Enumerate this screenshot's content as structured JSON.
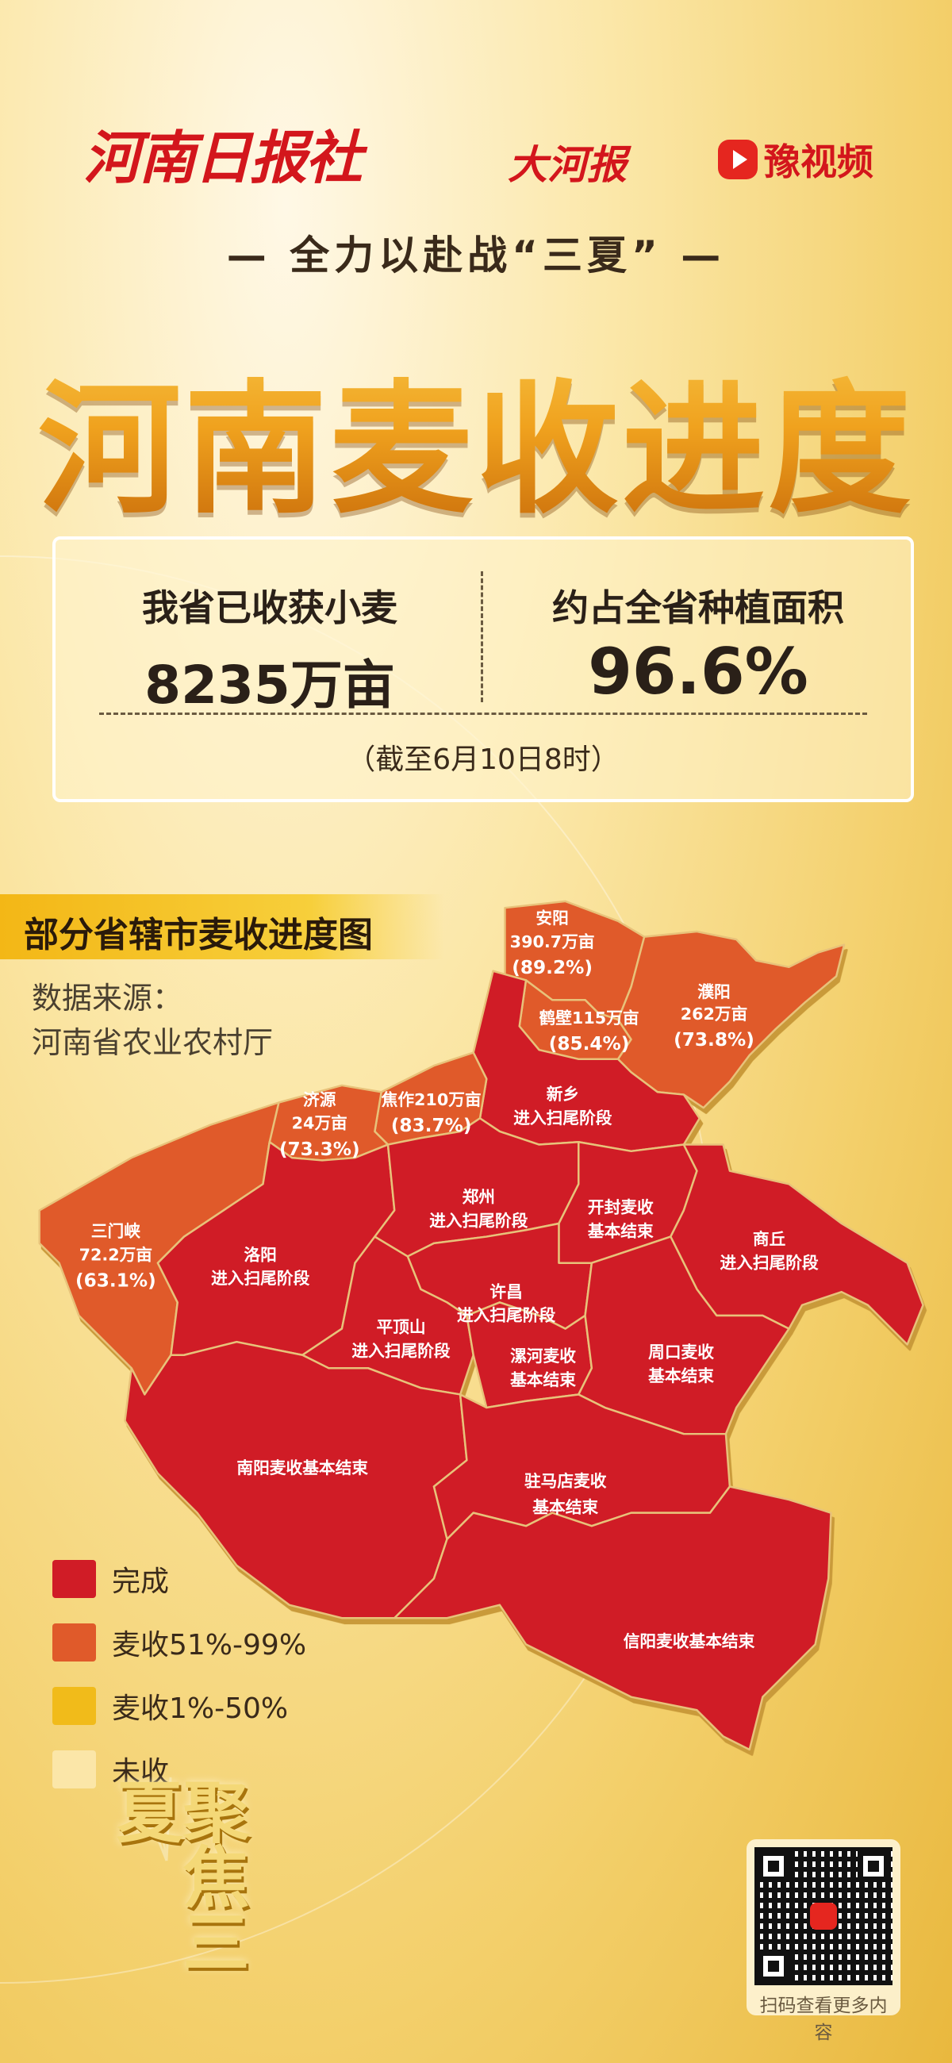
{
  "header": {
    "logo_left": "河南日报社",
    "logo_dahebao": "大河报",
    "logo_yushipin": "豫视频",
    "subtitle": "— 全力以赴战“三夏” —",
    "title": "河南麦收进度"
  },
  "stats": {
    "harvested_label": "我省已收获小麦",
    "harvested_value": "8235万亩",
    "share_label": "约占全省种植面积",
    "share_value": "96.6%",
    "as_of": "（截至6月10日8时）"
  },
  "map": {
    "banner": "部分省辖市麦收进度图",
    "source_line1": "数据来源：",
    "source_line2": "河南省农业农村厅",
    "colors": {
      "done": "#d01c26",
      "51_99": "#e05a2a",
      "1_50": "#f1bb1a",
      "none": "#fbe6a8",
      "border": "#e8c27a"
    },
    "regions": {
      "anyang": {
        "name": "安阳",
        "area": "390.7万亩",
        "pct": "(89.2%)",
        "status": "51_99",
        "harvest_pct": 89.2
      },
      "hebi": {
        "name": "鹤壁115万亩",
        "pct": "(85.4%)",
        "status": "51_99",
        "harvest_pct": 85.4
      },
      "puyang": {
        "name": "濮阳",
        "area": "262万亩",
        "pct": "(73.8%)",
        "status": "51_99",
        "harvest_pct": 73.8
      },
      "jiyuan": {
        "name": "济源",
        "area": "24万亩",
        "pct": "(73.3%)",
        "status": "51_99",
        "harvest_pct": 73.3
      },
      "jiaozuo": {
        "name": "焦作210万亩",
        "pct": "(83.7%)",
        "status": "51_99",
        "harvest_pct": 83.7
      },
      "sanmenxia": {
        "name": "三门峡",
        "area": "72.2万亩",
        "pct": "(63.1%)",
        "status": "51_99",
        "harvest_pct": 63.1
      },
      "xinxiang": {
        "name": "新乡",
        "status_text": "进入扫尾阶段",
        "status": "done"
      },
      "zhengzhou": {
        "name": "郑州",
        "status_text": "进入扫尾阶段",
        "status": "done"
      },
      "kaifeng": {
        "name": "开封麦收",
        "status_text": "基本结束",
        "status": "done"
      },
      "shangqiu": {
        "name": "商丘",
        "status_text": "进入扫尾阶段",
        "status": "done"
      },
      "luoyang": {
        "name": "洛阳",
        "status_text": "进入扫尾阶段",
        "status": "done"
      },
      "xuchang": {
        "name": "许昌",
        "status_text": "进入扫尾阶段",
        "status": "done"
      },
      "pingdingshan": {
        "name": "平顶山",
        "status_text": "进入扫尾阶段",
        "status": "done"
      },
      "luohe": {
        "name": "漯河麦收",
        "status_text": "基本结束",
        "status": "done"
      },
      "zhoukou": {
        "name": "周口麦收",
        "status_text": "基本结束",
        "status": "done"
      },
      "nanyang": {
        "name": "南阳麦收基本结束",
        "status": "done"
      },
      "zhumadian": {
        "name": "驻马店麦收",
        "status_text": "基本结束",
        "status": "done"
      },
      "xinyang": {
        "name": "信阳麦收基本结束",
        "status": "done"
      }
    },
    "legend": [
      {
        "label": "完成",
        "color": "#d01c26"
      },
      {
        "label": "麦收51%-99%",
        "color": "#e05a2a"
      },
      {
        "label": "麦收1%-50%",
        "color": "#f1bb1a"
      },
      {
        "label": "未收",
        "color": "#fbe6a8"
      }
    ]
  },
  "footer": {
    "slogan": "聚焦三夏",
    "qr_caption": "扫码查看更多内容"
  }
}
